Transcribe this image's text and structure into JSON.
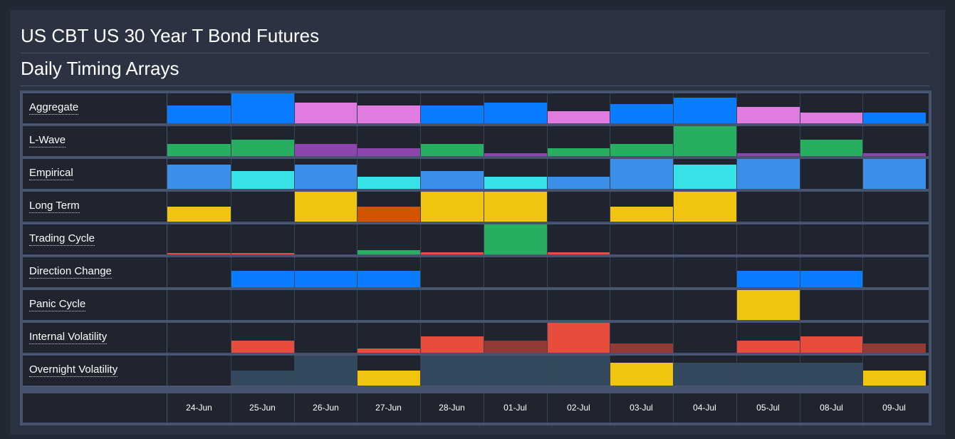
{
  "title": "US CBT US 30 Year T Bond Futures",
  "subtitle": "Daily Timing Arrays",
  "chart_data": {
    "type": "heatmap",
    "value_scale": "bar fill level, 0 = empty, 1 = full cell height (estimated)",
    "dates": [
      "24-Jun",
      "25-Jun",
      "26-Jun",
      "27-Jun",
      "28-Jun",
      "01-Jul",
      "02-Jul",
      "03-Jul",
      "04-Jul",
      "05-Jul",
      "08-Jul",
      "09-Jul"
    ],
    "rows": [
      {
        "name": "Aggregate",
        "values": [
          0.6,
          1.0,
          0.7,
          0.6,
          0.6,
          0.7,
          0.4,
          0.65,
          0.85,
          0.55,
          0.35,
          0.35
        ],
        "colors": [
          "#0a7cff",
          "#0a7cff",
          "#e07be0",
          "#e07be0",
          "#0a7cff",
          "#0a7cff",
          "#e07be0",
          "#0a7cff",
          "#0a7cff",
          "#e07be0",
          "#e07be0",
          "#0a7cff"
        ]
      },
      {
        "name": "L-Wave",
        "values": [
          0.4,
          0.55,
          0.4,
          0.25,
          0.4,
          0.1,
          0.25,
          0.4,
          1.0,
          0.1,
          0.55,
          0.1
        ],
        "colors": [
          "#27ae60",
          "#27ae60",
          "#8e44ad",
          "#8e44ad",
          "#27ae60",
          "#8e44ad",
          "#27ae60",
          "#27ae60",
          "#27ae60",
          "#8e44ad",
          "#27ae60",
          "#8e44ad"
        ]
      },
      {
        "name": "Empirical",
        "values": [
          0.8,
          0.6,
          0.8,
          0.4,
          0.6,
          0.4,
          0.4,
          1.0,
          0.8,
          1.0,
          0.0,
          1.0
        ],
        "colors": [
          "#3b8fe8",
          "#36e2e6",
          "#3b8fe8",
          "#36e2e6",
          "#3b8fe8",
          "#36e2e6",
          "#3b8fe8",
          "#3b8fe8",
          "#36e2e6",
          "#3b8fe8",
          "#3b8fe8",
          "#3b8fe8"
        ]
      },
      {
        "name": "Long Term",
        "values": [
          0.5,
          0.0,
          1.0,
          0.5,
          1.0,
          1.0,
          0.0,
          0.5,
          1.0,
          0.0,
          0.0,
          0.0
        ],
        "colors": [
          "#f1c40f",
          "#f1c40f",
          "#f1c40f",
          "#d35400",
          "#f1c40f",
          "#f1c40f",
          "#f1c40f",
          "#f1c40f",
          "#f1c40f",
          "#f1c40f",
          "#f1c40f",
          "#f1c40f"
        ]
      },
      {
        "name": "Trading Cycle",
        "values": [
          0.05,
          0.05,
          0.0,
          0.15,
          0.07,
          1.0,
          0.07,
          0.0,
          0.0,
          0.0,
          0.0,
          0.0
        ],
        "colors": [
          "#e74c3c",
          "#e74c3c",
          "#e74c3c",
          "#27ae60",
          "#e74c3c",
          "#27ae60",
          "#e74c3c",
          "#e74c3c",
          "#e74c3c",
          "#e74c3c",
          "#e74c3c",
          "#e74c3c"
        ]
      },
      {
        "name": "Direction Change",
        "values": [
          0.0,
          0.55,
          0.55,
          0.55,
          0.0,
          0.0,
          0.0,
          0.0,
          0.0,
          0.55,
          0.55,
          0.0
        ],
        "colors": [
          "#0a7cff",
          "#0a7cff",
          "#0a7cff",
          "#0a7cff",
          "#0a7cff",
          "#0a7cff",
          "#0a7cff",
          "#0a7cff",
          "#0a7cff",
          "#0a7cff",
          "#0a7cff",
          "#0a7cff"
        ]
      },
      {
        "name": "Panic Cycle",
        "values": [
          0.0,
          0.0,
          0.0,
          0.0,
          0.0,
          0.0,
          0.0,
          0.0,
          0.0,
          1.0,
          0.0,
          0.0
        ],
        "colors": [
          "#f1c40f",
          "#f1c40f",
          "#f1c40f",
          "#f1c40f",
          "#f1c40f",
          "#f1c40f",
          "#f1c40f",
          "#f1c40f",
          "#f1c40f",
          "#f1c40f",
          "#f1c40f",
          "#f1c40f"
        ]
      },
      {
        "name": "Internal Volatility",
        "values": [
          0.0,
          0.4,
          0.0,
          0.15,
          0.55,
          0.4,
          1.0,
          0.3,
          0.0,
          0.4,
          0.55,
          0.3
        ],
        "colors": [
          "#e74c3c",
          "#e74c3c",
          "#e74c3c",
          "#e74c3c",
          "#e74c3c",
          "#943a36",
          "#e74c3c",
          "#943a36",
          "#e74c3c",
          "#e74c3c",
          "#e74c3c",
          "#943a36"
        ]
      },
      {
        "name": "Overnight Volatility",
        "values": [
          0.0,
          0.5,
          1.0,
          0.5,
          1.0,
          1.0,
          1.0,
          0.75,
          0.75,
          0.75,
          0.75,
          0.5
        ],
        "colors": [
          "#34495e",
          "#34495e",
          "#34495e",
          "#f1c40f",
          "#34495e",
          "#34495e",
          "#34495e",
          "#f1c40f",
          "#34495e",
          "#34495e",
          "#34495e",
          "#f1c40f"
        ]
      }
    ]
  }
}
